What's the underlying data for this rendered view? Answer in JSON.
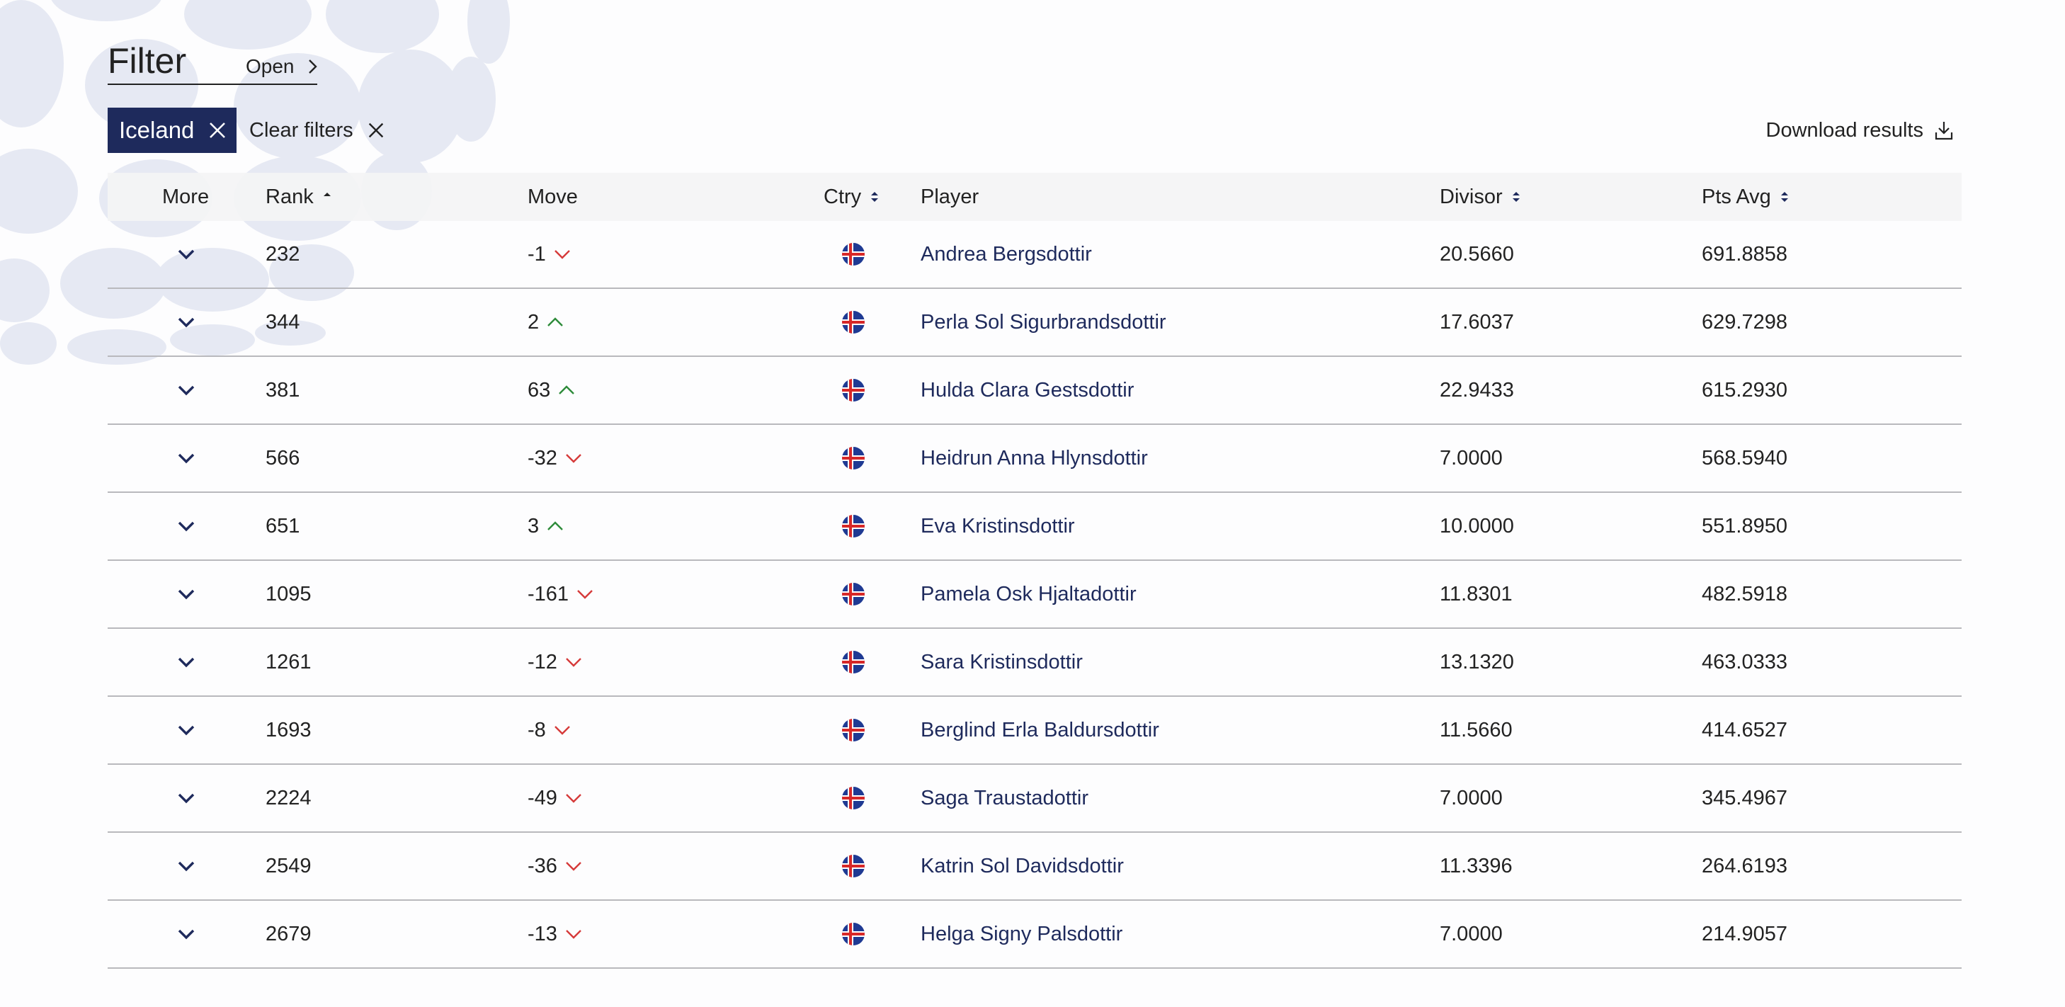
{
  "filter": {
    "title": "Filter",
    "open_label": "Open",
    "active_chip": "Iceland",
    "clear_label": "Clear filters"
  },
  "download_label": "Download results",
  "columns": {
    "more": "More",
    "rank": "Rank",
    "move": "Move",
    "ctry": "Ctry",
    "player": "Player",
    "divisor": "Divisor",
    "pts_avg": "Pts Avg"
  },
  "colors": {
    "navy": "#1e2a5c",
    "down": "#d63a3a",
    "up": "#2e8b3a",
    "flag_blue": "#1f3a93",
    "flag_red": "#d72828"
  },
  "rows": [
    {
      "rank": "232",
      "move": "-1",
      "dir": "down",
      "player": "Andrea Bergsdottir",
      "divisor": "20.5660",
      "pts_avg": "691.8858"
    },
    {
      "rank": "344",
      "move": "2",
      "dir": "up",
      "player": "Perla Sol Sigurbrandsdottir",
      "divisor": "17.6037",
      "pts_avg": "629.7298"
    },
    {
      "rank": "381",
      "move": "63",
      "dir": "up",
      "player": "Hulda Clara Gestsdottir",
      "divisor": "22.9433",
      "pts_avg": "615.2930"
    },
    {
      "rank": "566",
      "move": "-32",
      "dir": "down",
      "player": "Heidrun Anna Hlynsdottir",
      "divisor": "7.0000",
      "pts_avg": "568.5940"
    },
    {
      "rank": "651",
      "move": "3",
      "dir": "up",
      "player": "Eva Kristinsdottir",
      "divisor": "10.0000",
      "pts_avg": "551.8950"
    },
    {
      "rank": "1095",
      "move": "-161",
      "dir": "down",
      "player": "Pamela Osk Hjaltadottir",
      "divisor": "11.8301",
      "pts_avg": "482.5918"
    },
    {
      "rank": "1261",
      "move": "-12",
      "dir": "down",
      "player": "Sara Kristinsdottir",
      "divisor": "13.1320",
      "pts_avg": "463.0333"
    },
    {
      "rank": "1693",
      "move": "-8",
      "dir": "down",
      "player": "Berglind Erla Baldursdottir",
      "divisor": "11.5660",
      "pts_avg": "414.6527"
    },
    {
      "rank": "2224",
      "move": "-49",
      "dir": "down",
      "player": "Saga Traustadottir",
      "divisor": "7.0000",
      "pts_avg": "345.4967"
    },
    {
      "rank": "2549",
      "move": "-36",
      "dir": "down",
      "player": "Katrin Sol Davidsdottir",
      "divisor": "11.3396",
      "pts_avg": "264.6193"
    },
    {
      "rank": "2679",
      "move": "-13",
      "dir": "down",
      "player": "Helga Signy Palsdottir",
      "divisor": "7.0000",
      "pts_avg": "214.9057"
    }
  ]
}
